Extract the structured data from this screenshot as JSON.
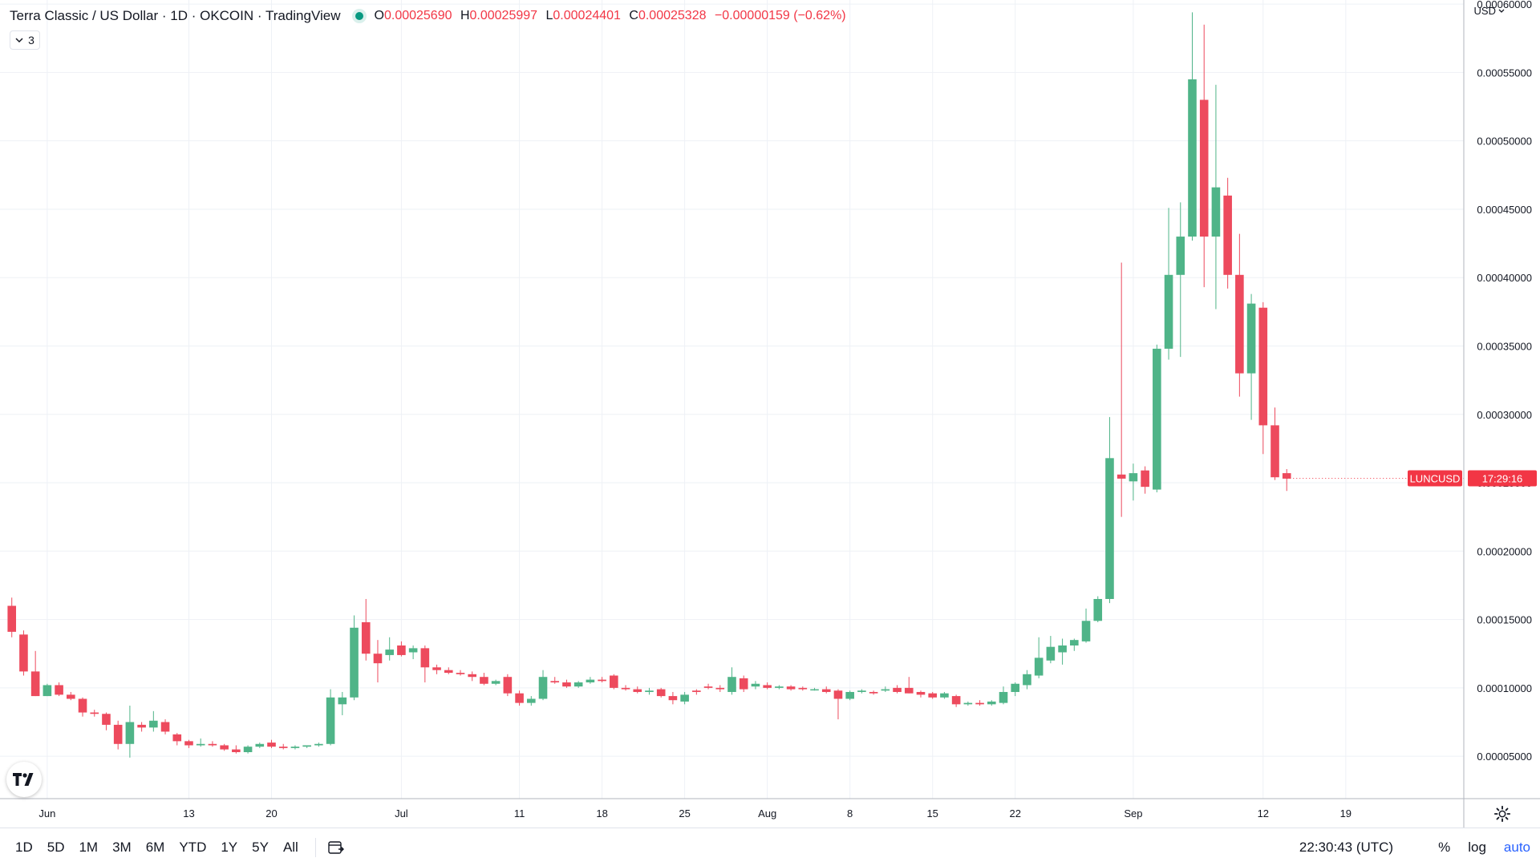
{
  "header": {
    "title": "Terra Classic / US Dollar · 1D · OKCOIN · TradingView",
    "ohlc": {
      "o_label": "O",
      "o_value": "0.00025690",
      "h_label": "H",
      "h_value": "0.00025997",
      "l_label": "L",
      "l_value": "0.00024401",
      "c_label": "C",
      "c_value": "0.00025328",
      "change": "−0.00000159 (−0.62%)"
    },
    "indicators_count": "3",
    "currency": "USD"
  },
  "price_tag": {
    "symbol": "LUNCUSD",
    "countdown": "17:29:16",
    "value": 0.00025328,
    "color": "#f23645"
  },
  "bottom_bar": {
    "ranges": [
      "1D",
      "5D",
      "1M",
      "3M",
      "6M",
      "YTD",
      "1Y",
      "5Y",
      "All"
    ],
    "clock": "22:30:43 (UTC)",
    "percent": "%",
    "log": "log",
    "auto": "auto"
  },
  "colors": {
    "up": "#4fb488",
    "down": "#ed4a5d",
    "grid": "#eef1f6",
    "axis_text": "#131722"
  },
  "chart_data": {
    "type": "candlestick",
    "title": "Terra Classic / US Dollar · 1D · OKCOIN",
    "y_ticks": [
      "0.00005000",
      "0.00010000",
      "0.00015000",
      "0.00020000",
      "0.00025000",
      "0.00030000",
      "0.00035000",
      "0.00040000",
      "0.00045000",
      "0.00050000",
      "0.00055000",
      "0.00060000"
    ],
    "ylim": [
      1.9e-05,
      0.000603
    ],
    "x_ticks": [
      {
        "label": "Jun",
        "date": "2022-06-01"
      },
      {
        "label": "13",
        "date": "2022-06-13"
      },
      {
        "label": "20",
        "date": "2022-06-20"
      },
      {
        "label": "Jul",
        "date": "2022-07-01"
      },
      {
        "label": "11",
        "date": "2022-07-11"
      },
      {
        "label": "18",
        "date": "2022-07-18"
      },
      {
        "label": "25",
        "date": "2022-07-25"
      },
      {
        "label": "Aug",
        "date": "2022-08-01"
      },
      {
        "label": "8",
        "date": "2022-08-08"
      },
      {
        "label": "15",
        "date": "2022-08-15"
      },
      {
        "label": "22",
        "date": "2022-08-22"
      },
      {
        "label": "Sep",
        "date": "2022-09-01"
      },
      {
        "label": "12",
        "date": "2022-09-12"
      },
      {
        "label": "19",
        "date": "2022-09-19"
      }
    ],
    "xlim": [
      "2022-05-28",
      "2022-09-29"
    ],
    "grid": true,
    "candles": [
      {
        "date": "2022-05-29",
        "o": 0.00016,
        "h": 0.000166,
        "l": 0.000137,
        "c": 0.000141
      },
      {
        "date": "2022-05-30",
        "o": 0.000139,
        "h": 0.000142,
        "l": 0.000109,
        "c": 0.000112
      },
      {
        "date": "2022-05-31",
        "o": 0.000112,
        "h": 0.000127,
        "l": 9.4e-05,
        "c": 9.4e-05
      },
      {
        "date": "2022-06-01",
        "o": 9.4e-05,
        "h": 0.000103,
        "l": 9.4e-05,
        "c": 0.000102
      },
      {
        "date": "2022-06-02",
        "o": 0.000102,
        "h": 0.000104,
        "l": 9.4e-05,
        "c": 9.5e-05
      },
      {
        "date": "2022-06-03",
        "o": 9.5e-05,
        "h": 9.7e-05,
        "l": 9.1e-05,
        "c": 9.2e-05
      },
      {
        "date": "2022-06-04",
        "o": 9.2e-05,
        "h": 9.3e-05,
        "l": 7.9e-05,
        "c": 8.2e-05
      },
      {
        "date": "2022-06-05",
        "o": 8.2e-05,
        "h": 8.4e-05,
        "l": 7.9e-05,
        "c": 8.1e-05
      },
      {
        "date": "2022-06-06",
        "o": 8.1e-05,
        "h": 8.2e-05,
        "l": 6.9e-05,
        "c": 7.3e-05
      },
      {
        "date": "2022-06-07",
        "o": 7.3e-05,
        "h": 7.6e-05,
        "l": 5.5e-05,
        "c": 5.9e-05
      },
      {
        "date": "2022-06-08",
        "o": 5.9e-05,
        "h": 8.7e-05,
        "l": 4.9e-05,
        "c": 7.5e-05
      },
      {
        "date": "2022-06-09",
        "o": 7.3e-05,
        "h": 7.5e-05,
        "l": 6.8e-05,
        "c": 7.1e-05
      },
      {
        "date": "2022-06-10",
        "o": 7.1e-05,
        "h": 8.3e-05,
        "l": 6.8e-05,
        "c": 7.6e-05
      },
      {
        "date": "2022-06-11",
        "o": 7.5e-05,
        "h": 7.7e-05,
        "l": 6.6e-05,
        "c": 6.8e-05
      },
      {
        "date": "2022-06-12",
        "o": 6.6e-05,
        "h": 6.7e-05,
        "l": 5.8e-05,
        "c": 6.1e-05
      },
      {
        "date": "2022-06-13",
        "o": 6.1e-05,
        "h": 6.2e-05,
        "l": 5.6e-05,
        "c": 5.8e-05
      },
      {
        "date": "2022-06-14",
        "o": 5.8e-05,
        "h": 6.3e-05,
        "l": 5.7e-05,
        "c": 5.9e-05
      },
      {
        "date": "2022-06-15",
        "o": 5.9e-05,
        "h": 6.1e-05,
        "l": 5.7e-05,
        "c": 5.8e-05
      },
      {
        "date": "2022-06-16",
        "o": 5.8e-05,
        "h": 5.9e-05,
        "l": 5.4e-05,
        "c": 5.5e-05
      },
      {
        "date": "2022-06-17",
        "o": 5.5e-05,
        "h": 5.8e-05,
        "l": 5.2e-05,
        "c": 5.3e-05
      },
      {
        "date": "2022-06-18",
        "o": 5.3e-05,
        "h": 5.8e-05,
        "l": 5.2e-05,
        "c": 5.7e-05
      },
      {
        "date": "2022-06-19",
        "o": 5.7e-05,
        "h": 6e-05,
        "l": 5.6e-05,
        "c": 5.9e-05
      },
      {
        "date": "2022-06-20",
        "o": 6e-05,
        "h": 6.2e-05,
        "l": 5.6e-05,
        "c": 5.7e-05
      },
      {
        "date": "2022-06-21",
        "o": 5.7e-05,
        "h": 5.9e-05,
        "l": 5.5e-05,
        "c": 5.6e-05
      },
      {
        "date": "2022-06-22",
        "o": 5.6e-05,
        "h": 5.8e-05,
        "l": 5.5e-05,
        "c": 5.7e-05
      },
      {
        "date": "2022-06-23",
        "o": 5.7e-05,
        "h": 5.8e-05,
        "l": 5.6e-05,
        "c": 5.8e-05
      },
      {
        "date": "2022-06-24",
        "o": 5.8e-05,
        "h": 6e-05,
        "l": 5.7e-05,
        "c": 5.9e-05
      },
      {
        "date": "2022-06-25",
        "o": 5.9e-05,
        "h": 9.9e-05,
        "l": 5.8e-05,
        "c": 9.3e-05
      },
      {
        "date": "2022-06-26",
        "o": 8.8e-05,
        "h": 9.7e-05,
        "l": 8e-05,
        "c": 9.3e-05
      },
      {
        "date": "2022-06-27",
        "o": 9.3e-05,
        "h": 0.000153,
        "l": 9.1e-05,
        "c": 0.000144
      },
      {
        "date": "2022-06-28",
        "o": 0.000148,
        "h": 0.000165,
        "l": 0.00012,
        "c": 0.000125
      },
      {
        "date": "2022-06-29",
        "o": 0.000125,
        "h": 0.000135,
        "l": 0.000104,
        "c": 0.000118
      },
      {
        "date": "2022-06-30",
        "o": 0.000124,
        "h": 0.000137,
        "l": 0.00012,
        "c": 0.000128
      },
      {
        "date": "2022-07-01",
        "o": 0.000131,
        "h": 0.000134,
        "l": 0.000123,
        "c": 0.000124
      },
      {
        "date": "2022-07-02",
        "o": 0.000126,
        "h": 0.000131,
        "l": 0.000121,
        "c": 0.000129
      },
      {
        "date": "2022-07-03",
        "o": 0.000129,
        "h": 0.000131,
        "l": 0.000104,
        "c": 0.000115
      },
      {
        "date": "2022-07-04",
        "o": 0.000115,
        "h": 0.000117,
        "l": 0.00011,
        "c": 0.000113
      },
      {
        "date": "2022-07-05",
        "o": 0.000113,
        "h": 0.000115,
        "l": 0.00011,
        "c": 0.000111
      },
      {
        "date": "2022-07-06",
        "o": 0.000111,
        "h": 0.000113,
        "l": 0.000109,
        "c": 0.00011
      },
      {
        "date": "2022-07-07",
        "o": 0.00011,
        "h": 0.000112,
        "l": 0.000105,
        "c": 0.000108
      },
      {
        "date": "2022-07-08",
        "o": 0.000108,
        "h": 0.000111,
        "l": 0.000102,
        "c": 0.000103
      },
      {
        "date": "2022-07-09",
        "o": 0.000103,
        "h": 0.000106,
        "l": 0.000102,
        "c": 0.000105
      },
      {
        "date": "2022-07-10",
        "o": 0.000108,
        "h": 0.00011,
        "l": 9.4e-05,
        "c": 9.6e-05
      },
      {
        "date": "2022-07-11",
        "o": 9.6e-05,
        "h": 9.8e-05,
        "l": 8.7e-05,
        "c": 8.9e-05
      },
      {
        "date": "2022-07-12",
        "o": 8.9e-05,
        "h": 9.4e-05,
        "l": 8.7e-05,
        "c": 9.2e-05
      },
      {
        "date": "2022-07-13",
        "o": 9.2e-05,
        "h": 0.000113,
        "l": 9.1e-05,
        "c": 0.000108
      },
      {
        "date": "2022-07-14",
        "o": 0.000105,
        "h": 0.000108,
        "l": 0.000103,
        "c": 0.000104
      },
      {
        "date": "2022-07-15",
        "o": 0.000104,
        "h": 0.000106,
        "l": 0.0001,
        "c": 0.000101
      },
      {
        "date": "2022-07-16",
        "o": 0.000101,
        "h": 0.000105,
        "l": 0.0001,
        "c": 0.000104
      },
      {
        "date": "2022-07-17",
        "o": 0.000104,
        "h": 0.000108,
        "l": 0.000103,
        "c": 0.000106
      },
      {
        "date": "2022-07-18",
        "o": 0.000106,
        "h": 0.000108,
        "l": 0.000104,
        "c": 0.000105
      },
      {
        "date": "2022-07-19",
        "o": 0.000109,
        "h": 0.00011,
        "l": 9.9e-05,
        "c": 0.0001
      },
      {
        "date": "2022-07-20",
        "o": 0.0001,
        "h": 0.000102,
        "l": 9.8e-05,
        "c": 9.9e-05
      },
      {
        "date": "2022-07-21",
        "o": 9.9e-05,
        "h": 0.000101,
        "l": 9.6e-05,
        "c": 9.7e-05
      },
      {
        "date": "2022-07-22",
        "o": 9.7e-05,
        "h": 0.0001,
        "l": 9.5e-05,
        "c": 9.8e-05
      },
      {
        "date": "2022-07-23",
        "o": 9.9e-05,
        "h": 0.0001,
        "l": 9.3e-05,
        "c": 9.4e-05
      },
      {
        "date": "2022-07-24",
        "o": 9.4e-05,
        "h": 9.7e-05,
        "l": 8.8e-05,
        "c": 9.1e-05
      },
      {
        "date": "2022-07-25",
        "o": 9e-05,
        "h": 9.7e-05,
        "l": 8.8e-05,
        "c": 9.5e-05
      },
      {
        "date": "2022-07-26",
        "o": 9.8e-05,
        "h": 9.9e-05,
        "l": 9.5e-05,
        "c": 9.7e-05
      },
      {
        "date": "2022-07-27",
        "o": 0.000101,
        "h": 0.000103,
        "l": 9.9e-05,
        "c": 0.0001
      },
      {
        "date": "2022-07-28",
        "o": 0.0001,
        "h": 0.000102,
        "l": 9.7e-05,
        "c": 9.9e-05
      },
      {
        "date": "2022-07-29",
        "o": 9.7e-05,
        "h": 0.000115,
        "l": 9.5e-05,
        "c": 0.000108
      },
      {
        "date": "2022-07-30",
        "o": 0.000107,
        "h": 0.000109,
        "l": 9.7e-05,
        "c": 9.9e-05
      },
      {
        "date": "2022-07-31",
        "o": 0.000101,
        "h": 0.000105,
        "l": 9.9e-05,
        "c": 0.000103
      },
      {
        "date": "2022-08-01",
        "o": 0.000102,
        "h": 0.000104,
        "l": 9.9e-05,
        "c": 0.0001
      },
      {
        "date": "2022-08-02",
        "o": 0.0001,
        "h": 0.000102,
        "l": 9.9e-05,
        "c": 0.000101
      },
      {
        "date": "2022-08-03",
        "o": 0.000101,
        "h": 0.000102,
        "l": 9.8e-05,
        "c": 9.9e-05
      },
      {
        "date": "2022-08-04",
        "o": 0.0001,
        "h": 0.000101,
        "l": 9.8e-05,
        "c": 9.9e-05
      },
      {
        "date": "2022-08-05",
        "o": 9.9e-05,
        "h": 0.0001,
        "l": 9.8e-05,
        "c": 9.9e-05
      },
      {
        "date": "2022-08-06",
        "o": 9.9e-05,
        "h": 0.000101,
        "l": 9.6e-05,
        "c": 9.7e-05
      },
      {
        "date": "2022-08-07",
        "o": 9.8e-05,
        "h": 9.9e-05,
        "l": 7.7e-05,
        "c": 9.2e-05
      },
      {
        "date": "2022-08-08",
        "o": 9.2e-05,
        "h": 9.8e-05,
        "l": 9.1e-05,
        "c": 9.7e-05
      },
      {
        "date": "2022-08-09",
        "o": 9.7e-05,
        "h": 9.9e-05,
        "l": 9.6e-05,
        "c": 9.8e-05
      },
      {
        "date": "2022-08-10",
        "o": 9.7e-05,
        "h": 9.8e-05,
        "l": 9.5e-05,
        "c": 9.6e-05
      },
      {
        "date": "2022-08-11",
        "o": 9.8e-05,
        "h": 0.000101,
        "l": 9.7e-05,
        "c": 9.9e-05
      },
      {
        "date": "2022-08-12",
        "o": 0.0001,
        "h": 0.000102,
        "l": 9.6e-05,
        "c": 9.7e-05
      },
      {
        "date": "2022-08-13",
        "o": 0.0001,
        "h": 0.000108,
        "l": 9.6e-05,
        "c": 9.6e-05
      },
      {
        "date": "2022-08-14",
        "o": 9.7e-05,
        "h": 9.8e-05,
        "l": 9.3e-05,
        "c": 9.5e-05
      },
      {
        "date": "2022-08-15",
        "o": 9.6e-05,
        "h": 9.7e-05,
        "l": 9.2e-05,
        "c": 9.3e-05
      },
      {
        "date": "2022-08-16",
        "o": 9.3e-05,
        "h": 9.7e-05,
        "l": 9.2e-05,
        "c": 9.6e-05
      },
      {
        "date": "2022-08-17",
        "o": 9.4e-05,
        "h": 9.5e-05,
        "l": 8.6e-05,
        "c": 8.8e-05
      },
      {
        "date": "2022-08-18",
        "o": 8.8e-05,
        "h": 9e-05,
        "l": 8.7e-05,
        "c": 8.9e-05
      },
      {
        "date": "2022-08-19",
        "o": 8.9e-05,
        "h": 9.1e-05,
        "l": 8.7e-05,
        "c": 8.8e-05
      },
      {
        "date": "2022-08-20",
        "o": 8.8e-05,
        "h": 9.1e-05,
        "l": 8.7e-05,
        "c": 9e-05
      },
      {
        "date": "2022-08-21",
        "o": 8.9e-05,
        "h": 0.000101,
        "l": 8.8e-05,
        "c": 9.7e-05
      },
      {
        "date": "2022-08-22",
        "o": 9.7e-05,
        "h": 0.000104,
        "l": 9.4e-05,
        "c": 0.000103
      },
      {
        "date": "2022-08-23",
        "o": 0.000102,
        "h": 0.000113,
        "l": 9.9e-05,
        "c": 0.00011
      },
      {
        "date": "2022-08-24",
        "o": 0.000109,
        "h": 0.000137,
        "l": 0.000107,
        "c": 0.000122
      },
      {
        "date": "2022-08-25",
        "o": 0.00012,
        "h": 0.000138,
        "l": 0.000118,
        "c": 0.00013
      },
      {
        "date": "2022-08-26",
        "o": 0.000126,
        "h": 0.000136,
        "l": 0.000117,
        "c": 0.000131
      },
      {
        "date": "2022-08-27",
        "o": 0.000131,
        "h": 0.000136,
        "l": 0.000127,
        "c": 0.000135
      },
      {
        "date": "2022-08-28",
        "o": 0.000134,
        "h": 0.000158,
        "l": 0.000133,
        "c": 0.000149
      },
      {
        "date": "2022-08-29",
        "o": 0.000149,
        "h": 0.000167,
        "l": 0.000148,
        "c": 0.000165
      },
      {
        "date": "2022-08-30",
        "o": 0.000165,
        "h": 0.000298,
        "l": 0.000162,
        "c": 0.000268
      },
      {
        "date": "2022-08-31",
        "o": 0.000256,
        "h": 0.000411,
        "l": 0.000225,
        "c": 0.000253
      },
      {
        "date": "2022-09-01",
        "o": 0.000251,
        "h": 0.000264,
        "l": 0.000237,
        "c": 0.000257
      },
      {
        "date": "2022-09-02",
        "o": 0.000259,
        "h": 0.000262,
        "l": 0.000242,
        "c": 0.000247
      },
      {
        "date": "2022-09-03",
        "o": 0.000245,
        "h": 0.000351,
        "l": 0.000243,
        "c": 0.000348
      },
      {
        "date": "2022-09-04",
        "o": 0.000348,
        "h": 0.000451,
        "l": 0.00034,
        "c": 0.000402
      },
      {
        "date": "2022-09-05",
        "o": 0.000402,
        "h": 0.000455,
        "l": 0.000342,
        "c": 0.00043
      },
      {
        "date": "2022-09-06",
        "o": 0.00043,
        "h": 0.000594,
        "l": 0.000427,
        "c": 0.000545
      },
      {
        "date": "2022-09-07",
        "o": 0.00053,
        "h": 0.000585,
        "l": 0.000393,
        "c": 0.00043
      },
      {
        "date": "2022-09-08",
        "o": 0.00043,
        "h": 0.000541,
        "l": 0.000377,
        "c": 0.000466
      },
      {
        "date": "2022-09-09",
        "o": 0.00046,
        "h": 0.000473,
        "l": 0.000392,
        "c": 0.000402
      },
      {
        "date": "2022-09-10",
        "o": 0.000402,
        "h": 0.000432,
        "l": 0.000313,
        "c": 0.00033
      },
      {
        "date": "2022-09-11",
        "o": 0.00033,
        "h": 0.000388,
        "l": 0.000296,
        "c": 0.000381
      },
      {
        "date": "2022-09-12",
        "o": 0.000378,
        "h": 0.000382,
        "l": 0.000271,
        "c": 0.000292
      },
      {
        "date": "2022-09-13",
        "o": 0.000292,
        "h": 0.000305,
        "l": 0.000252,
        "c": 0.000254
      },
      {
        "date": "2022-09-14",
        "o": 0.000257,
        "h": 0.00026,
        "l": 0.000244,
        "c": 0.000253
      }
    ]
  }
}
